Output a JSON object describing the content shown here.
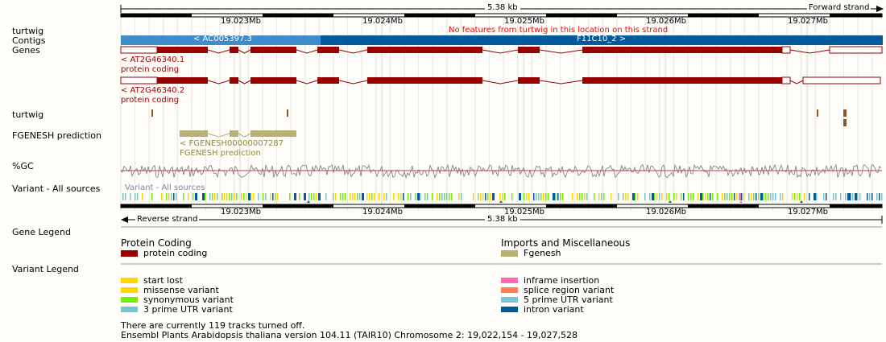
{
  "scale": {
    "size": "5.38 kb",
    "forward_strand": "Forward strand",
    "reverse_strand": "Reverse strand"
  },
  "ticks": [
    "19.023Mb",
    "19.024Mb",
    "19.025Mb",
    "19.026Mb",
    "19.027Mb"
  ],
  "tracks": {
    "turtwig_top": "turtwig",
    "contigs": "Contigs",
    "genes": "Genes",
    "turtwig": "turtwig",
    "fgenesh": "FGENESH prediction",
    "gc": "%GC",
    "variant": "Variant - All sources",
    "gene_legend": "Gene Legend",
    "variant_legend": "Variant Legend"
  },
  "messages": {
    "no_features": "No features from turtwig in this location on this strand"
  },
  "contigs": {
    "left": "< AC005397.3",
    "right": "F11C10_2 >"
  },
  "genes": [
    {
      "name": "< AT2G46340.1",
      "biotype": "protein coding"
    },
    {
      "name": "< AT2G46340.2",
      "biotype": "protein coding"
    }
  ],
  "fgenesh": {
    "name": "< FGENESH00000007287",
    "label": "FGENESH prediction"
  },
  "variant_track_label": "Variant - All sources",
  "gene_legend": {
    "left_title": "Protein Coding",
    "left_items": [
      {
        "label": "protein coding",
        "color": "#990000"
      }
    ],
    "right_title": "Imports and Miscellaneous",
    "right_items": [
      {
        "label": "Fgenesh",
        "color": "#b8b074"
      }
    ]
  },
  "variant_legend": {
    "left": [
      {
        "label": "start lost",
        "color": "#ffd700"
      },
      {
        "label": "missense variant",
        "color": "#ffd700"
      },
      {
        "label": "synonymous variant",
        "color": "#76ee00"
      },
      {
        "label": "3 prime UTR variant",
        "color": "#7ac5cd"
      }
    ],
    "right": [
      {
        "label": "inframe insertion",
        "color": "#ff69b4"
      },
      {
        "label": "splice region variant",
        "color": "#ff7f50"
      },
      {
        "label": "5 prime UTR variant",
        "color": "#7ac5cd"
      },
      {
        "label": "intron variant",
        "color": "#02599c"
      }
    ]
  },
  "footer": {
    "tracks_off": "There are currently 119 tracks turned off.",
    "version": "Ensembl Plants Arabidopsis thaliana version 104.11 (TAIR10) Chromosome 2: 19,022,154 - 19,027,528"
  },
  "colors": {
    "gene": "#990000",
    "contig_light": "#3e8dc9",
    "contig_dark": "#02599c",
    "fgenesh": "#b8b074",
    "turtwig": "#8b5a2b",
    "message": "#ff0000",
    "gc_line": "#cc3333"
  }
}
